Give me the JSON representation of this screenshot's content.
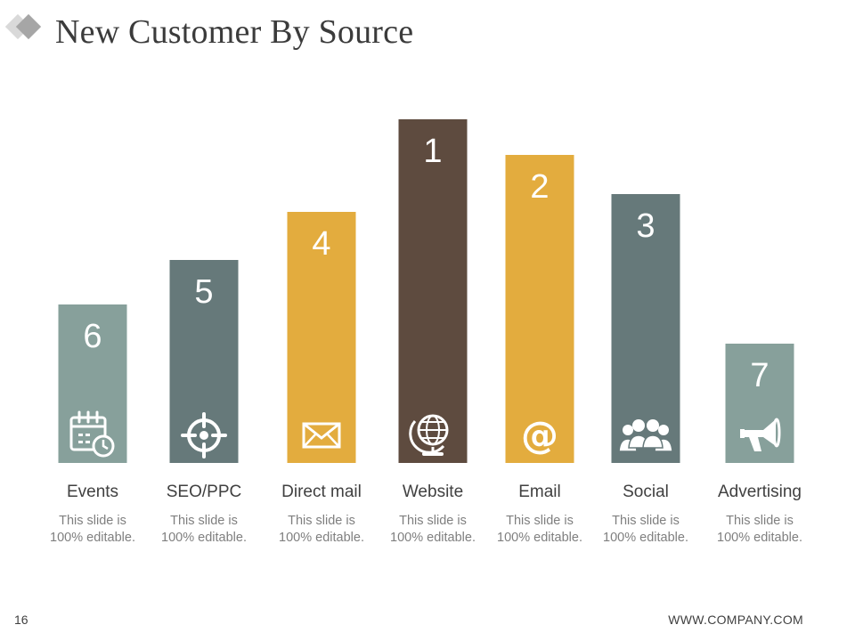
{
  "slide": {
    "title": "New Customer By Source",
    "page_number": "16",
    "footer_url": "WWW.COMPANY.COM"
  },
  "chart_data": {
    "type": "bar",
    "title": "New Customer By Source",
    "categories": [
      "Events",
      "SEO/PPC",
      "Direct mail",
      "Website",
      "Email",
      "Social",
      "Advertising"
    ],
    "values": [
      178,
      228,
      282,
      386,
      346,
      302,
      134
    ],
    "ylim": [
      0,
      400
    ],
    "grid": false,
    "legend": "none",
    "bar_labels": [
      "6",
      "5",
      "4",
      "1",
      "2",
      "3",
      "7"
    ],
    "descriptions": [
      [
        "This slide is",
        "100% editable."
      ],
      [
        "This slide is",
        "100% editable."
      ],
      [
        "This slide is",
        "100% editable."
      ],
      [
        "This slide is",
        "100% editable."
      ],
      [
        "This slide is",
        "100% editable."
      ],
      [
        "This slide is",
        "100% editable."
      ],
      [
        "This slide is",
        "100% editable."
      ]
    ],
    "icons": [
      "calendar-clock-icon",
      "target-icon",
      "envelope-icon",
      "globe-icon",
      "at-sign-icon",
      "people-group-icon",
      "megaphone-icon"
    ],
    "colors": [
      "#87a09b",
      "#66797a",
      "#e3ac3e",
      "#5e4b3f",
      "#e3ac3e",
      "#66797a",
      "#87a09b"
    ]
  }
}
